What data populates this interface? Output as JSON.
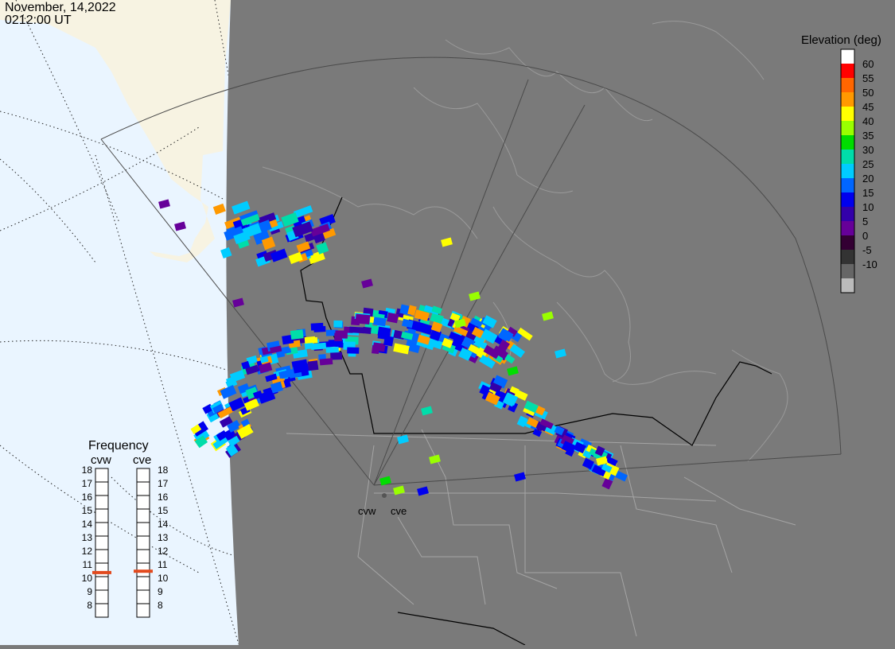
{
  "header": {
    "date": "November, 14,2022",
    "time": "0212:00 UT"
  },
  "colorbar": {
    "title": "Elevation (deg)",
    "ticks": [
      "60",
      "55",
      "50",
      "45",
      "40",
      "35",
      "30",
      "25",
      "20",
      "15",
      "10",
      "5",
      "0",
      "-5",
      "-10"
    ],
    "colors": [
      "#ffffff",
      "#ff0000",
      "#ff6600",
      "#ff9900",
      "#ffff00",
      "#99ff00",
      "#00dd00",
      "#00ddaa",
      "#00ccff",
      "#0066ff",
      "#0000ee",
      "#3300aa",
      "#660099",
      "#330033",
      "#333333",
      "#666666",
      "#bbbbbb"
    ]
  },
  "frequency": {
    "title": "Frequency",
    "radars": [
      "cvw",
      "cve"
    ],
    "scale": [
      18,
      17,
      16,
      15,
      14,
      13,
      12,
      11,
      10,
      9,
      8
    ],
    "values_mhz": [
      10.8,
      10.9
    ],
    "indicator_color": "#e24a1e"
  },
  "radars": {
    "labels": [
      "cvw",
      "cve"
    ]
  },
  "colors": {
    "ocean": "#eaf5ff",
    "land_daylit": "#f7f3e2",
    "night": "#7a7a7a",
    "fov_border": "#4a4a4a",
    "coastline": "#9a9a9a"
  }
}
